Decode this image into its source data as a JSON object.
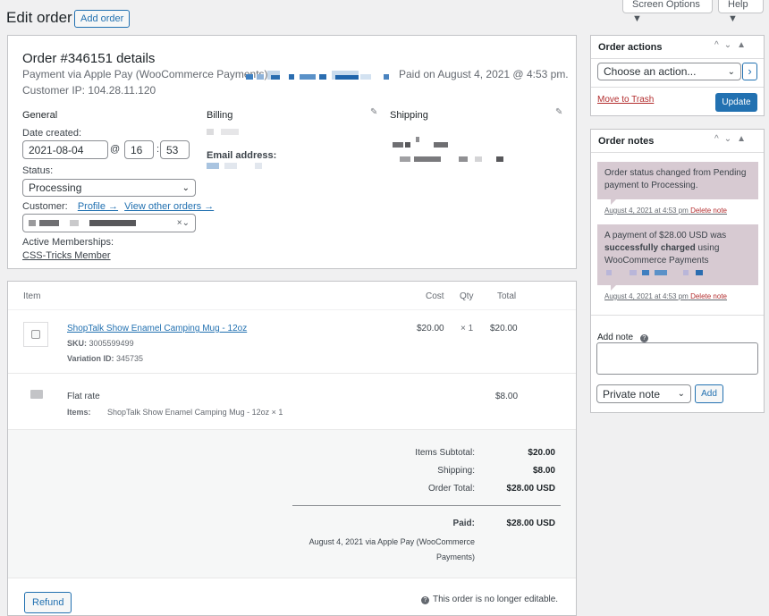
{
  "header": {
    "title": "Edit order",
    "add_button": "Add order",
    "screen_options": "Screen Options ▼",
    "help": "Help ▼"
  },
  "order": {
    "heading": "Order #346151 details",
    "payment_prefix": "Payment via Apple Pay (WooCommerce Payments)",
    "paid_on": "Paid on August 4, 2021 @ 4:53 pm.",
    "customer_ip": "Customer IP: 104.28.11.120",
    "general": {
      "title": "General",
      "date_label": "Date created:",
      "date_value": "2021-08-04",
      "at": "@",
      "hour": "16",
      "colon": ":",
      "minute": "53",
      "status_label": "Status:",
      "status_value": "Processing",
      "customer_label": "Customer:",
      "profile_link": "Profile →",
      "other_orders_link": "View other orders →",
      "memberships_label": "Active Memberships:",
      "membership_link": "CSS-Tricks Member"
    },
    "billing": {
      "title": "Billing",
      "email_label": "Email address:"
    },
    "shipping": {
      "title": "Shipping"
    }
  },
  "items": {
    "headers": {
      "item": "Item",
      "cost": "Cost",
      "qty": "Qty",
      "total": "Total"
    },
    "product": {
      "name": "ShopTalk Show Enamel Camping Mug - 12oz",
      "sku_label": "SKU:",
      "sku": "3005599499",
      "variation_label": "Variation ID:",
      "variation": "345735",
      "cost": "$20.00",
      "qty": "× 1",
      "total": "$20.00"
    },
    "shipping": {
      "name": "Flat rate",
      "items_label": "Items:",
      "items_value": "ShopTalk Show Enamel Camping Mug - 12oz × 1",
      "total": "$8.00"
    },
    "totals": {
      "subtotal_label": "Items Subtotal:",
      "subtotal": "$20.00",
      "shipping_label": "Shipping:",
      "shipping": "$8.00",
      "order_total_label": "Order Total:",
      "order_total": "$28.00 USD",
      "paid_label": "Paid:",
      "paid": "$28.00 USD",
      "paid_note_1": "August 4, 2021 via Apple Pay (WooCommerce",
      "paid_note_2": "Payments)"
    },
    "refund_button": "Refund",
    "not_editable": "This order is no longer editable."
  },
  "order_actions": {
    "title": "Order actions",
    "select_value": "Choose an action...",
    "go": "›",
    "trash": "Move to Trash",
    "update": "Update"
  },
  "order_notes": {
    "title": "Order notes",
    "notes": [
      {
        "text": "Order status changed from Pending payment to Processing.",
        "date": "August 4, 2021 at 4:53 pm",
        "delete": "Delete note"
      },
      {
        "text_1": "A payment of $28.00 USD was",
        "text_bold": "successfully charged",
        "text_2": "using",
        "text_3": "WooCommerce Payments",
        "date": "August 4, 2021 at 4:53 pm",
        "delete": "Delete note"
      }
    ],
    "add_note_label": "Add note",
    "note_type": "Private note",
    "add_button": "Add"
  },
  "colors": {
    "accent": "#2271b1",
    "note_bg": "#d7cad2",
    "trash": "#b32d2e"
  }
}
